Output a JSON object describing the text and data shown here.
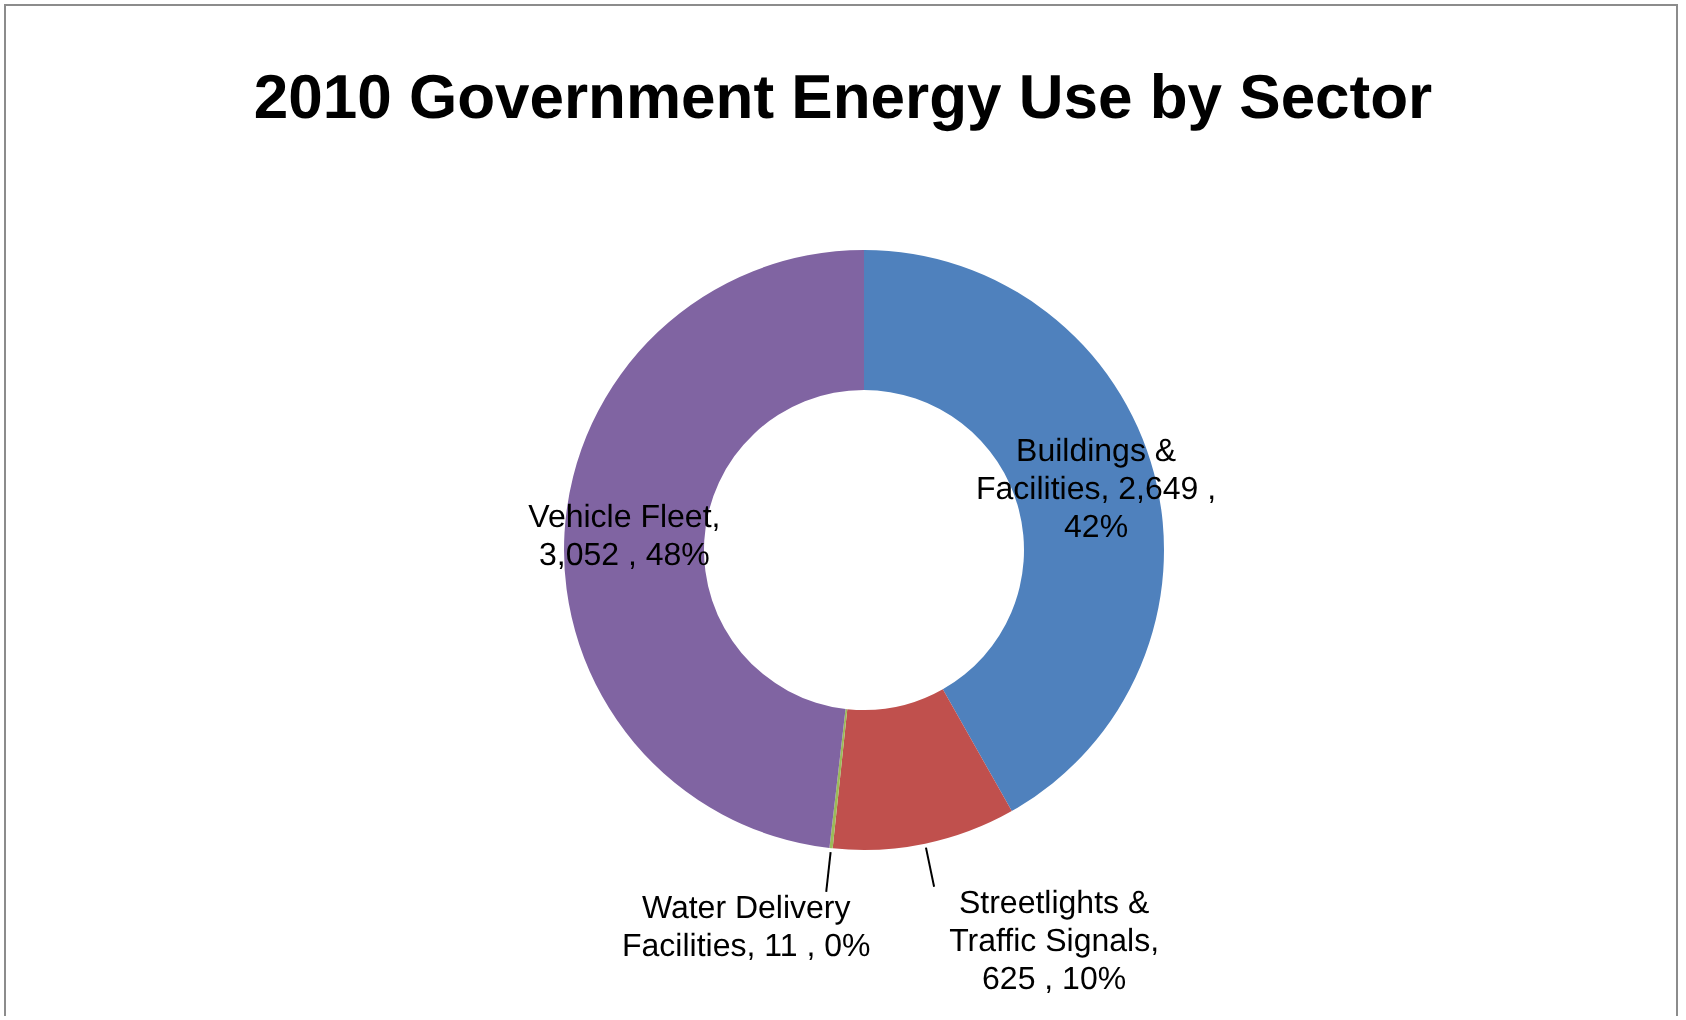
{
  "chart_data": {
    "type": "donut",
    "title": "2010 Government Energy Use by Sector",
    "categories": [
      "Buildings & Facilities",
      "Streetlights & Traffic Signals",
      "Water Delivery Facilities",
      "Vehicle Fleet"
    ],
    "values": [
      2649,
      625,
      11,
      3052
    ],
    "value_labels": [
      ", 2,649 , 42%",
      ", 625 , 10%",
      ", 11 , 0%",
      ", 3,052 , 48%"
    ],
    "colors": [
      "#4f81bd",
      "#c0504d",
      "#9bbb59",
      "#8064a2"
    ],
    "legend": false
  }
}
